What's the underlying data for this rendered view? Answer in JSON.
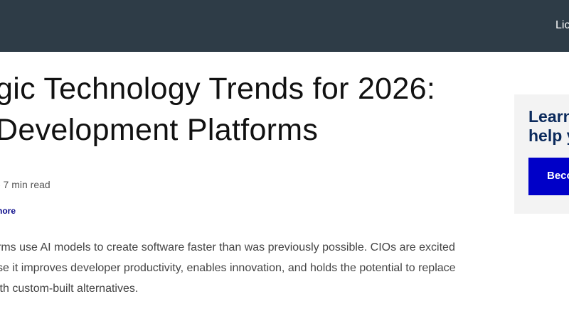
{
  "nav": {
    "link": "Lic"
  },
  "article": {
    "title_line1": "gic Technology Trends for 2026:",
    "title_line2": "Development Platforms",
    "meta": "- 7 min read",
    "more_link": "nore",
    "body": [
      "rms use AI models to create software faster than was previously possible. CIOs are excited",
      "se it improves developer productivity, enables innovation, and holds the potential to replace",
      "ith custom-built alternatives."
    ]
  },
  "sidebar": {
    "title_line1": "Learn",
    "title_line2": "help y",
    "button": "Beco"
  }
}
